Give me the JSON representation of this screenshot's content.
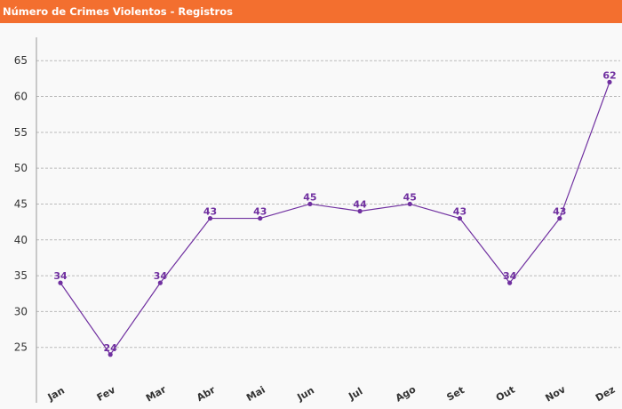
{
  "header": {
    "title": "Número de Crimes Violentos - Registros"
  },
  "colors": {
    "header_bg": "#f36f2f",
    "series": "#7030a0",
    "grid": "#bbbbbb",
    "plot_bg": "#f9f9f9"
  },
  "chart_data": {
    "type": "line",
    "title": "",
    "xlabel": "",
    "ylabel": "",
    "categories": [
      "Jan",
      "Fev",
      "Mar",
      "Abr",
      "Mai",
      "Jun",
      "Jul",
      "Ago",
      "Set",
      "Out",
      "Nov",
      "Dez"
    ],
    "series": [
      {
        "values": [
          34,
          24,
          34,
          43,
          43,
          45,
          44,
          45,
          43,
          34,
          43,
          62
        ]
      }
    ],
    "ylim": [
      20,
      68
    ],
    "yticks": [
      25,
      30,
      35,
      40,
      45,
      50,
      55,
      60,
      65
    ],
    "grid": true,
    "legend": "none",
    "data_labels": true
  }
}
